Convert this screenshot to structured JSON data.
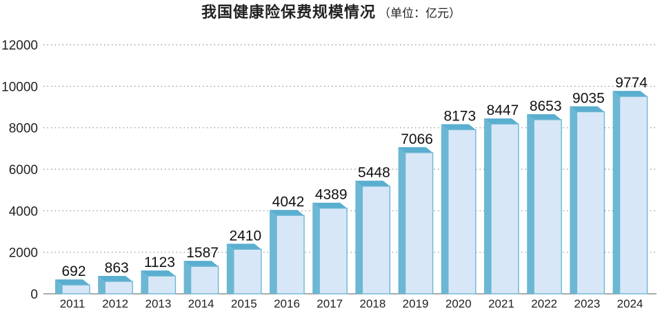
{
  "chart_data": {
    "type": "bar",
    "title": "我国健康险保费规模情况",
    "subtitle": "（单位：亿元）",
    "categories": [
      "2011",
      "2012",
      "2013",
      "2014",
      "2015",
      "2016",
      "2017",
      "2018",
      "2019",
      "2020",
      "2021",
      "2022",
      "2023",
      "2024"
    ],
    "values": [
      692,
      863,
      1123,
      1587,
      2410,
      4042,
      4389,
      5448,
      7066,
      8173,
      8447,
      8653,
      9035,
      9774
    ],
    "value_labels": [
      "692",
      "863",
      "1123",
      "1587",
      "2410",
      "4042",
      "4389",
      "5448",
      "7066",
      "8173",
      "8447",
      "8653",
      "9035",
      "9774"
    ],
    "yticks": [
      "0",
      "2000",
      "4000",
      "6000",
      "8000",
      "10000",
      "12000"
    ],
    "ylim": [
      0,
      12000
    ],
    "grid": true,
    "xlabel": "",
    "ylabel": "",
    "colors": {
      "bar_front": "#d8e7f7",
      "bar_side": "#6cb7d4",
      "bar_top": "#5aaecf",
      "grid": "#8a8a8a"
    }
  }
}
